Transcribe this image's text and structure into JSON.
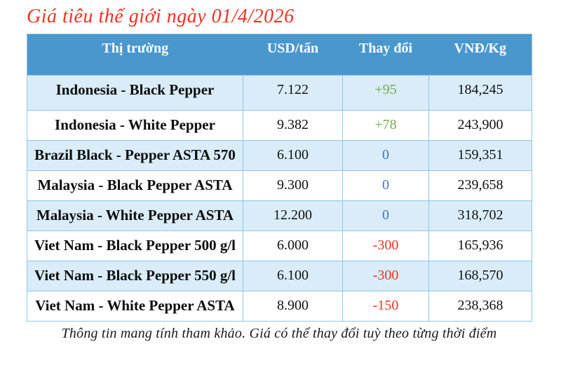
{
  "title": "Giá tiêu thế giới ngày 01/4/2026",
  "table": {
    "headers": {
      "market": "Thị trường",
      "usd": "USD/tấn",
      "change": "Thay đổi",
      "vnd": "VNĐ/Kg"
    },
    "rows": [
      {
        "market": "Indonesia - Black Pepper",
        "usd": "7.122",
        "change": "+95",
        "change_dir": "up",
        "vnd": "184,245"
      },
      {
        "market": "Indonesia - White Pepper",
        "usd": "9.382",
        "change": "+78",
        "change_dir": "up",
        "vnd": "243,900"
      },
      {
        "market": "Brazil Black - Pepper ASTA 570",
        "usd": "6.100",
        "change": "0",
        "change_dir": "zero",
        "vnd": "159,351"
      },
      {
        "market": "Malaysia - Black Pepper ASTA",
        "usd": "9.300",
        "change": "0",
        "change_dir": "zero",
        "vnd": "239,658"
      },
      {
        "market": "Malaysia - White Pepper ASTA",
        "usd": "12.200",
        "change": "0",
        "change_dir": "zero",
        "vnd": "318,702"
      },
      {
        "market": "Viet Nam - Black Pepper 500 g/l",
        "usd": "6.000",
        "change": "-300",
        "change_dir": "down",
        "vnd": "165,936"
      },
      {
        "market": "Viet Nam - Black Pepper 550 g/l",
        "usd": "6.100",
        "change": "-300",
        "change_dir": "down",
        "vnd": "168,570"
      },
      {
        "market": "Viet Nam - White Pepper ASTA",
        "usd": "8.900",
        "change": "-150",
        "change_dir": "down",
        "vnd": "238,368"
      }
    ]
  },
  "footer_note": "Thông tin mang tính tham khảo. Giá có thể thay đổi tuỳ theo từng thời điểm",
  "colors": {
    "title_red": "#ee3224",
    "header_bg": "#4a97ce",
    "header_text": "#fbfdfe",
    "row_alt_bg": "#d9ecf8",
    "border": "#8fc6e6",
    "change_up": "#70ad47",
    "change_zero": "#4472c4",
    "change_down": "#ec3323"
  }
}
